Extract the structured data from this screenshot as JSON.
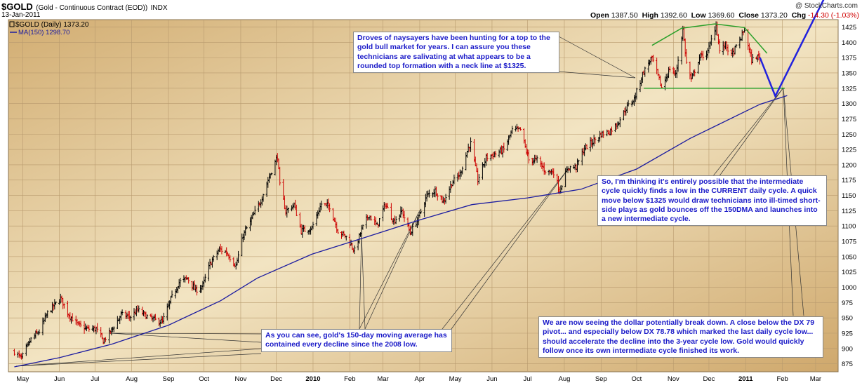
{
  "header": {
    "symbol": "$GOLD",
    "description": "(Gold - Continuous Contract (EOD))",
    "exchange": "INDX",
    "date": "13-Jan-2011",
    "watermark": "@ StockCharts.com",
    "ohlc": {
      "open_label": "Open",
      "open": "1387.50",
      "high_label": "High",
      "high": "1392.60",
      "low_label": "Low",
      "low": "1369.60",
      "close_label": "Close",
      "close": "1373.20",
      "chg_label": "Chg",
      "chg": "-14.30 (-1.03%)",
      "chg_color": "#d00000"
    }
  },
  "legend": {
    "price": "$GOLD (Daily) 1373.20",
    "ma": "MA(150) 1298.70",
    "price_color": "#000000",
    "ma_color": "#1c1ca0"
  },
  "annotations": {
    "top": "Droves of naysayers have been hunting for a top to the gold bull market for years. I can assure you these technicians are salivating at what appears to be a rounded top formation with a neck line at $1325.",
    "middle": "So, I'm thinking it's entirely possible that the intermediate cycle quickly finds a low in the CURRENT daily cycle. A quick move below $1325 would draw technicians into ill-timed short-side plays as gold bounces off the 150DMA and launches into a new intermediate cycle.",
    "bottom_left": "As you can see, gold's 150-day moving average has contained every decline since the 2008 low.",
    "bottom_right": "We are now seeing the dollar potentially break down. A close below the DX 79 pivot... and especially below DX 78.78 which marked the last daily cycle low... should accelerate the decline into the 3-year cycle low. Gold would quickly follow once its own intermediate cycle finished its work."
  },
  "chart_data": {
    "type": "line",
    "title": "$GOLD (Gold - Continuous Contract (EOD))",
    "x_tick_labels": [
      "May",
      "Jun",
      "Jul",
      "Aug",
      "Sep",
      "Oct",
      "Nov",
      "Dec",
      "2010",
      "Feb",
      "Mar",
      "Apr",
      "May",
      "Jun",
      "Jul",
      "Aug",
      "Sep",
      "Oct",
      "Nov",
      "Dec",
      "2011",
      "Feb",
      "Mar"
    ],
    "y_tick_labels": [
      875,
      900,
      925,
      950,
      975,
      1000,
      1025,
      1050,
      1075,
      1100,
      1125,
      1150,
      1175,
      1200,
      1225,
      1250,
      1275,
      1300,
      1325,
      1350,
      1375,
      1400,
      1425
    ],
    "ylim": [
      862,
      1437
    ],
    "grid": true,
    "colors": {
      "up": "#000000",
      "down": "#cc0000",
      "ma": "#1c1ca0",
      "projection": "#2222dd",
      "rounded_top": "#2aa02a",
      "neckline": "#2aa02a"
    },
    "series": [
      {
        "name": "$GOLD (Daily)",
        "style": "ohlc-bars",
        "keypoints": [
          [
            "2009-04-24",
            895
          ],
          [
            "2009-04-30",
            884
          ],
          [
            "2009-05-08",
            915
          ],
          [
            "2009-05-15",
            928
          ],
          [
            "2009-05-22",
            958
          ],
          [
            "2009-06-02",
            982
          ],
          [
            "2009-06-09",
            955
          ],
          [
            "2009-06-17",
            938
          ],
          [
            "2009-06-24",
            932
          ],
          [
            "2009-07-02",
            932
          ],
          [
            "2009-07-08",
            912
          ],
          [
            "2009-07-14",
            927
          ],
          [
            "2009-07-23",
            955
          ],
          [
            "2009-07-31",
            952
          ],
          [
            "2009-08-06",
            963
          ],
          [
            "2009-08-14",
            952
          ],
          [
            "2009-08-21",
            946
          ],
          [
            "2009-08-27",
            944
          ],
          [
            "2009-09-03",
            980
          ],
          [
            "2009-09-10",
            1008
          ],
          [
            "2009-09-17",
            1015
          ],
          [
            "2009-09-24",
            995
          ],
          [
            "2009-09-30",
            1003
          ],
          [
            "2009-10-06",
            1038
          ],
          [
            "2009-10-14",
            1062
          ],
          [
            "2009-10-20",
            1057
          ],
          [
            "2009-10-28",
            1035
          ],
          [
            "2009-11-03",
            1085
          ],
          [
            "2009-11-11",
            1115
          ],
          [
            "2009-11-18",
            1142
          ],
          [
            "2009-11-25",
            1180
          ],
          [
            "2009-12-02",
            1214
          ],
          [
            "2009-12-04",
            1166
          ],
          [
            "2009-12-09",
            1124
          ],
          [
            "2009-12-16",
            1135
          ],
          [
            "2009-12-22",
            1092
          ],
          [
            "2009-12-31",
            1097
          ],
          [
            "2010-01-08",
            1136
          ],
          [
            "2010-01-15",
            1132
          ],
          [
            "2010-01-22",
            1092
          ],
          [
            "2010-01-29",
            1082
          ],
          [
            "2010-02-05",
            1060
          ],
          [
            "2010-02-11",
            1094
          ],
          [
            "2010-02-17",
            1118
          ],
          [
            "2010-02-24",
            1100
          ],
          [
            "2010-03-03",
            1136
          ],
          [
            "2010-03-10",
            1108
          ],
          [
            "2010-03-17",
            1124
          ],
          [
            "2010-03-24",
            1089
          ],
          [
            "2010-03-31",
            1113
          ],
          [
            "2010-04-07",
            1150
          ],
          [
            "2010-04-14",
            1158
          ],
          [
            "2010-04-21",
            1140
          ],
          [
            "2010-04-28",
            1170
          ],
          [
            "2010-05-05",
            1185
          ],
          [
            "2010-05-12",
            1228
          ],
          [
            "2010-05-14",
            1235
          ],
          [
            "2010-05-20",
            1175
          ],
          [
            "2010-05-27",
            1212
          ],
          [
            "2010-06-04",
            1218
          ],
          [
            "2010-06-11",
            1225
          ],
          [
            "2010-06-18",
            1256
          ],
          [
            "2010-06-25",
            1257
          ],
          [
            "2010-07-02",
            1208
          ],
          [
            "2010-07-09",
            1208
          ],
          [
            "2010-07-16",
            1190
          ],
          [
            "2010-07-23",
            1188
          ],
          [
            "2010-07-28",
            1158
          ],
          [
            "2010-08-04",
            1195
          ],
          [
            "2010-08-11",
            1197
          ],
          [
            "2010-08-18",
            1227
          ],
          [
            "2010-08-25",
            1238
          ],
          [
            "2010-09-01",
            1250
          ],
          [
            "2010-09-08",
            1254
          ],
          [
            "2010-09-15",
            1268
          ],
          [
            "2010-09-22",
            1292
          ],
          [
            "2010-09-29",
            1308
          ],
          [
            "2010-10-06",
            1348
          ],
          [
            "2010-10-13",
            1373
          ],
          [
            "2010-10-15",
            1369
          ],
          [
            "2010-10-22",
            1326
          ],
          [
            "2010-10-29",
            1357
          ],
          [
            "2010-11-03",
            1347
          ],
          [
            "2010-11-09",
            1421
          ],
          [
            "2010-11-12",
            1366
          ],
          [
            "2010-11-16",
            1338
          ],
          [
            "2010-11-23",
            1375
          ],
          [
            "2010-11-30",
            1384
          ],
          [
            "2010-12-07",
            1430
          ],
          [
            "2010-12-10",
            1386
          ],
          [
            "2010-12-15",
            1396
          ],
          [
            "2010-12-20",
            1378
          ],
          [
            "2010-12-27",
            1403
          ],
          [
            "2010-12-31",
            1421
          ],
          [
            "2011-01-06",
            1370
          ],
          [
            "2011-01-10",
            1377
          ],
          [
            "2011-01-13",
            1373
          ]
        ]
      },
      {
        "name": "MA(150)",
        "style": "line",
        "keypoints": [
          [
            "2009-04-24",
            870
          ],
          [
            "2009-06-01",
            885
          ],
          [
            "2009-07-15",
            907
          ],
          [
            "2009-09-01",
            938
          ],
          [
            "2009-10-15",
            978
          ],
          [
            "2009-11-15",
            1015
          ],
          [
            "2009-12-31",
            1054
          ],
          [
            "2010-02-15",
            1082
          ],
          [
            "2010-04-01",
            1110
          ],
          [
            "2010-05-15",
            1135
          ],
          [
            "2010-07-01",
            1146
          ],
          [
            "2010-08-15",
            1160
          ],
          [
            "2010-10-01",
            1193
          ],
          [
            "2010-11-15",
            1243
          ],
          [
            "2011-01-13",
            1298.7
          ],
          [
            "2011-02-05",
            1313
          ]
        ]
      },
      {
        "name": "",
        "style": "projection",
        "keypoints": [
          [
            "2011-01-13",
            1375
          ],
          [
            "2011-01-26",
            1312
          ],
          [
            "2011-03-13",
            1490
          ]
        ]
      },
      {
        "name": "",
        "style": "rounded-top",
        "keypoints": [
          [
            "2010-10-14",
            1395
          ],
          [
            "2010-11-08",
            1423
          ],
          [
            "2010-12-06",
            1430
          ],
          [
            "2010-12-31",
            1424
          ],
          [
            "2011-01-19",
            1382
          ]
        ]
      },
      {
        "name": "",
        "style": "neckline",
        "keypoints": [
          [
            "2010-10-07",
            1325
          ],
          [
            "2011-02-03",
            1325
          ]
        ]
      }
    ]
  }
}
